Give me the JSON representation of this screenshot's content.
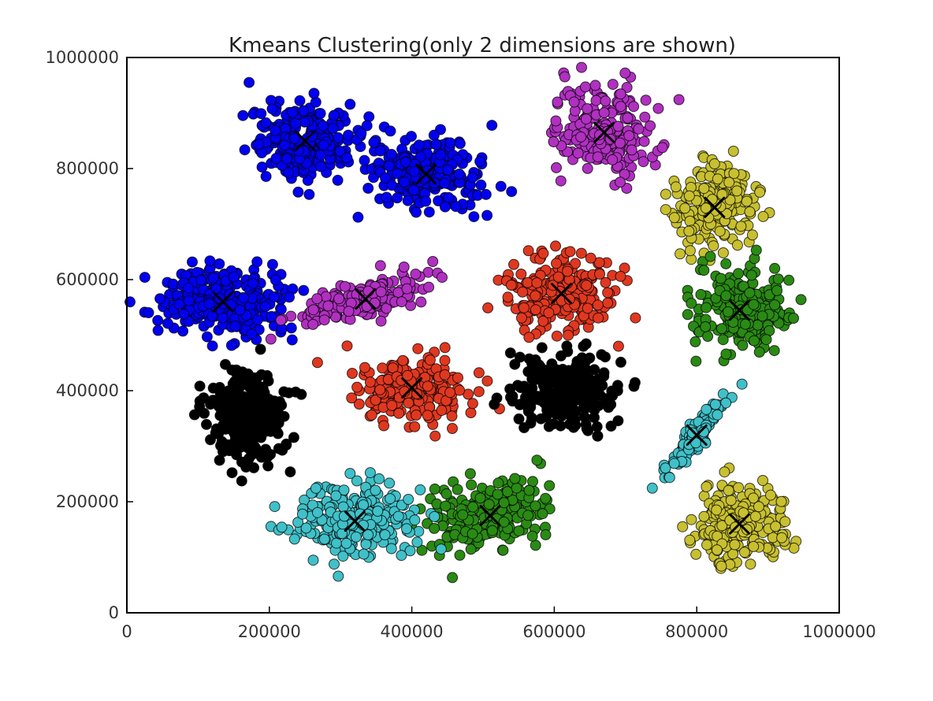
{
  "chart_data": {
    "type": "scatter",
    "title": "Kmeans Clustering(only 2 dimensions are shown)",
    "xlabel": "",
    "ylabel": "",
    "xlim": [
      0,
      1000000
    ],
    "ylim": [
      0,
      1000000
    ],
    "xticks": [
      {
        "value": 0,
        "label": "0"
      },
      {
        "value": 200000,
        "label": "200000"
      },
      {
        "value": 400000,
        "label": "400000"
      },
      {
        "value": 600000,
        "label": "600000"
      },
      {
        "value": 800000,
        "label": "800000"
      },
      {
        "value": 1000000,
        "label": "1000000"
      }
    ],
    "yticks": [
      {
        "value": 0,
        "label": "0"
      },
      {
        "value": 200000,
        "label": "200000"
      },
      {
        "value": 400000,
        "label": "400000"
      },
      {
        "value": 600000,
        "label": "600000"
      },
      {
        "value": 800000,
        "label": "800000"
      },
      {
        "value": 1000000,
        "label": "1000000"
      }
    ],
    "grid": false,
    "legend": "none",
    "centroid_marker": "x",
    "clusters": [
      {
        "color": "#0000ee",
        "center": [
          250000,
          850000
        ],
        "spread": [
          40000,
          35000
        ],
        "angle": 0,
        "count": 260
      },
      {
        "color": "#0000ee",
        "center": [
          420000,
          790000
        ],
        "spread": [
          40000,
          33000
        ],
        "angle": 0,
        "count": 240
      },
      {
        "color": "#0000ee",
        "center": [
          135000,
          560000
        ],
        "spread": [
          45000,
          30000
        ],
        "angle": 0,
        "count": 280
      },
      {
        "color": "#b030c0",
        "center": [
          670000,
          865000
        ],
        "spread": [
          35000,
          40000
        ],
        "angle": 0,
        "count": 230
      },
      {
        "color": "#b030c0",
        "center": [
          335000,
          565000
        ],
        "spread": [
          50000,
          16000
        ],
        "angle": 0.38,
        "count": 210
      },
      {
        "color": "#c8c030",
        "center": [
          825000,
          730000
        ],
        "spread": [
          28000,
          38000
        ],
        "angle": -0.3,
        "count": 200
      },
      {
        "color": "#c8c030",
        "center": [
          860000,
          160000
        ],
        "spread": [
          32000,
          35000
        ],
        "angle": 0,
        "count": 210
      },
      {
        "color": "#e03820",
        "center": [
          610000,
          575000
        ],
        "spread": [
          38000,
          35000
        ],
        "angle": 0,
        "count": 230
      },
      {
        "color": "#e03820",
        "center": [
          400000,
          405000
        ],
        "spread": [
          42000,
          30000
        ],
        "angle": 0.12,
        "count": 220
      },
      {
        "color": "#2a8a14",
        "center": [
          860000,
          545000
        ],
        "spread": [
          35000,
          36000
        ],
        "angle": 0,
        "count": 230
      },
      {
        "color": "#2a8a14",
        "center": [
          510000,
          175000
        ],
        "spread": [
          45000,
          28000
        ],
        "angle": 0.38,
        "count": 220
      },
      {
        "color": "#000000",
        "center": [
          170000,
          355000
        ],
        "spread": [
          25000,
          42000
        ],
        "angle": 0,
        "count": 260
      },
      {
        "color": "#000000",
        "center": [
          615000,
          400000
        ],
        "spread": [
          38000,
          34000
        ],
        "angle": 0,
        "count": 260
      },
      {
        "color": "#40c0c8",
        "center": [
          320000,
          165000
        ],
        "spread": [
          42000,
          33000
        ],
        "angle": 0,
        "count": 250
      },
      {
        "color": "#40c0c8",
        "center": [
          800000,
          320000
        ],
        "spread": [
          38000,
          6000
        ],
        "angle": 1.05,
        "count": 150
      }
    ]
  }
}
